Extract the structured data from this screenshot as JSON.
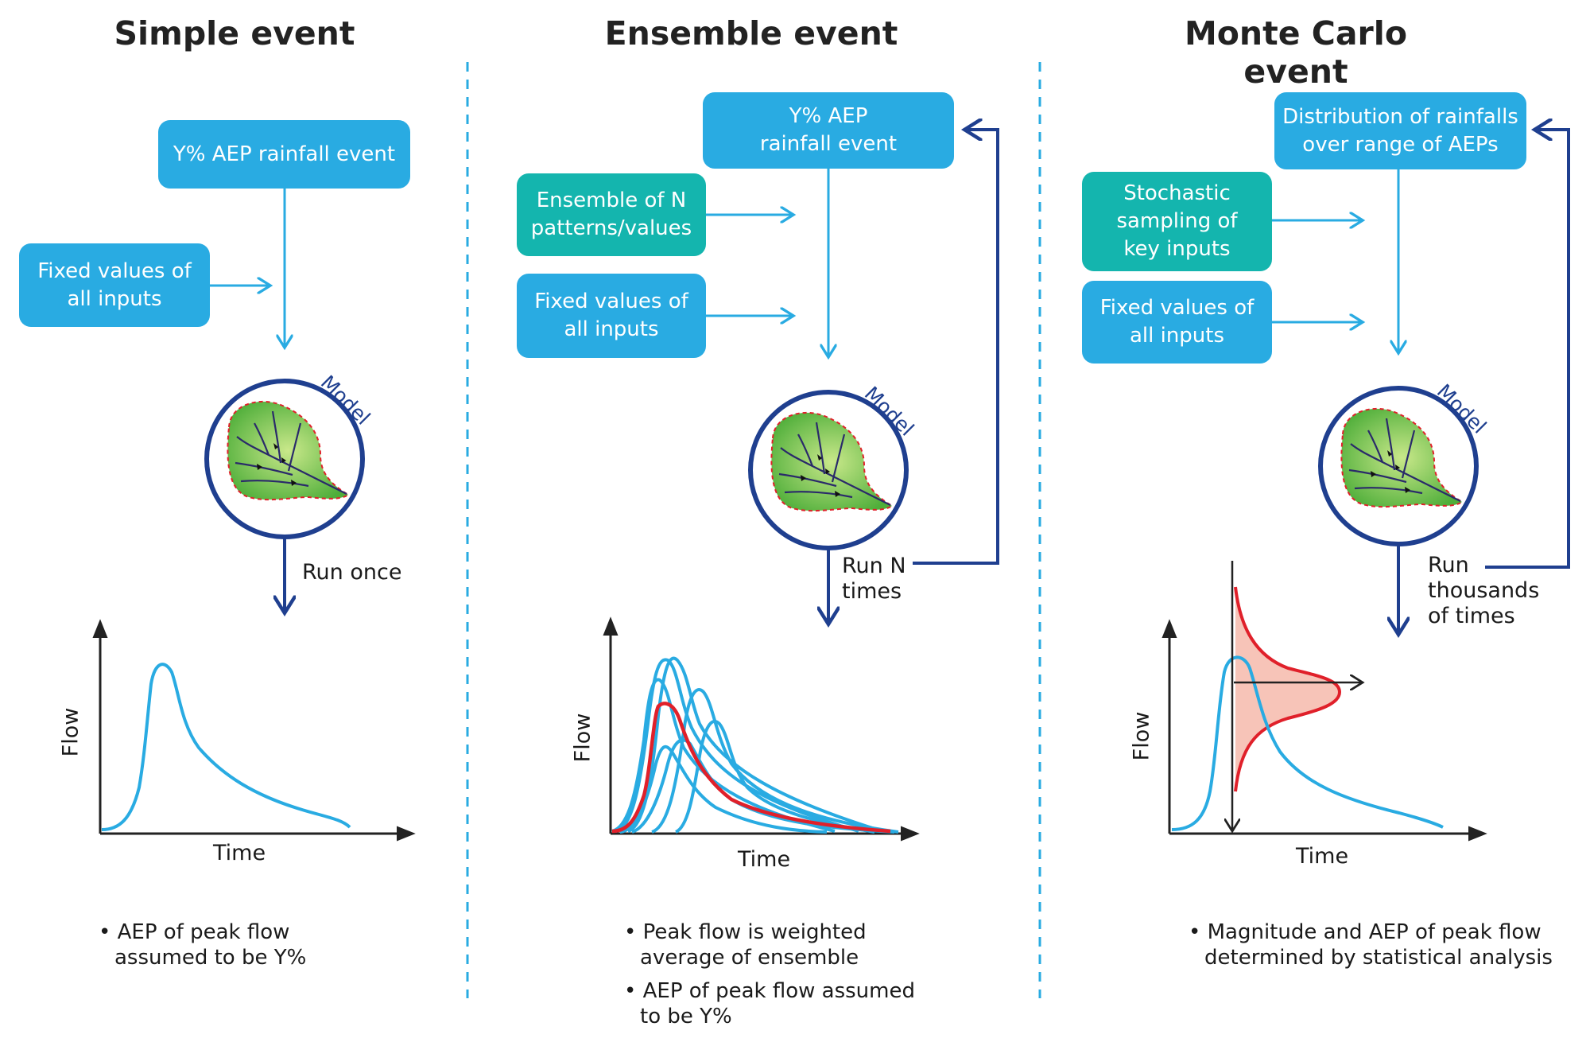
{
  "panels": {
    "simple": {
      "title": "Simple event",
      "rain_box": "Y% AEP rainfall event",
      "fixed_box": "Fixed values of all inputs",
      "model_label": "Model",
      "run_label": "Run once",
      "y_axis": "Flow",
      "x_axis": "Time",
      "notes": [
        "AEP of peak flow assumed to be Y%"
      ]
    },
    "ensemble": {
      "title": "Ensemble event",
      "rain_box": "Y% AEP rainfall event",
      "ensemble_box": "Ensemble of N patterns/values",
      "fixed_box": "Fixed values of all inputs",
      "model_label": "Model",
      "run_label": "Run N times",
      "y_axis": "Flow",
      "x_axis": "Time",
      "notes": [
        "Peak flow is weighted average of ensemble",
        "AEP of peak flow assumed to be Y%"
      ]
    },
    "montecarlo": {
      "title": "Monte Carlo event",
      "rain_box": "Distribution of rainfalls over range of AEPs",
      "stochastic_box": "Stochastic sampling of key inputs",
      "fixed_box": "Fixed values of all inputs",
      "model_label": "Model",
      "run_label": "Run thousands of times",
      "y_axis": "Flow",
      "x_axis": "Time",
      "notes": [
        "Magnitude and AEP of peak flow determined by statistical analysis"
      ]
    }
  },
  "colors": {
    "box_blue": "#29abe2",
    "box_teal": "#14b5ae",
    "arrow_light": "#29abe2",
    "arrow_dark": "#1f3f8f",
    "weighted_curve": "#e0202a",
    "distribution_fill": "#f7c4b8"
  }
}
